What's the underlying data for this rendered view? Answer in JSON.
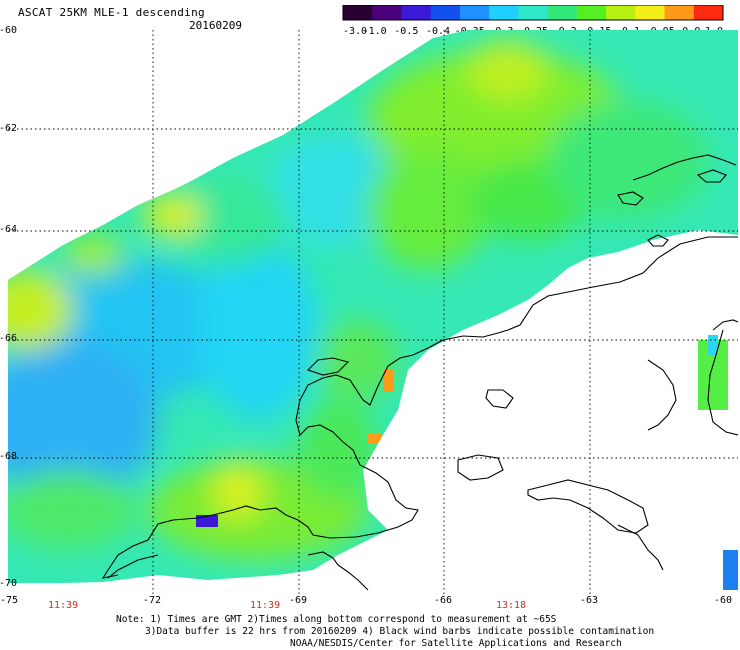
{
  "header": {
    "title": "ASCAT 25KM MLE-1 descending",
    "date": "20160209"
  },
  "colorbar": {
    "labels": [
      "-3.0",
      "-1.0",
      "-0.5",
      "-0.4",
      "-0.35",
      "-0.3",
      "-0.25",
      "-0.2",
      "-0.15",
      "-0.1",
      "-0.05",
      "0.0",
      "1.0"
    ],
    "colors": [
      "#2a0033",
      "#4a007a",
      "#3a1ad6",
      "#1450f0",
      "#1e90ff",
      "#22d0ff",
      "#2ee6c8",
      "#33e87a",
      "#55ef22",
      "#b7f011",
      "#f3ef17",
      "#ff9a1a",
      "#ff2a10"
    ]
  },
  "axes": {
    "x_labels": [
      "-75",
      "-72",
      "-69",
      "-66",
      "-63",
      "-60"
    ],
    "y_labels": [
      "-60",
      "-62",
      "-64",
      "-66",
      "-68",
      "-70"
    ]
  },
  "times": [
    "11:39",
    "11:39",
    "13:18"
  ],
  "notes": {
    "line1": "Note: 1) Times are GMT 2)Times along bottom correspond to measurement at ~65S",
    "line2": "3)Data buffer is 22 hrs from 20160209 4) Black wind barbs indicate possible contamination",
    "line3": "NOAA/NESDIS/Center for Satellite Applications and Research"
  },
  "map": {
    "land_color": "#ffffff",
    "coast_color": "#000000",
    "grid_color": "#000000"
  }
}
